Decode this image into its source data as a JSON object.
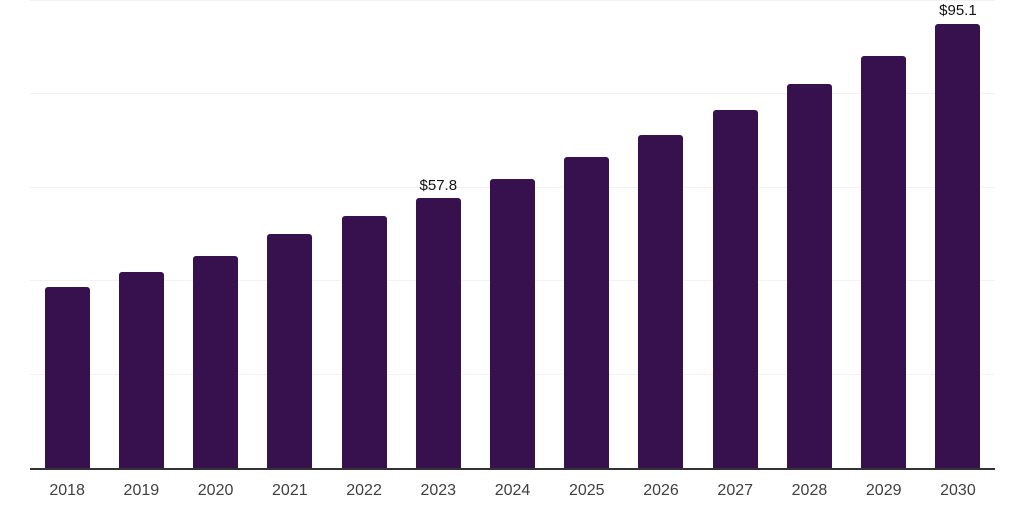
{
  "chart_data": {
    "type": "bar",
    "title": "",
    "xlabel": "",
    "ylabel": "",
    "categories": [
      "2018",
      "2019",
      "2020",
      "2021",
      "2022",
      "2023",
      "2024",
      "2025",
      "2026",
      "2027",
      "2028",
      "2029",
      "2030"
    ],
    "values": [
      38.8,
      41.9,
      45.5,
      50.2,
      53.9,
      57.8,
      61.9,
      66.5,
      71.4,
      76.6,
      82.2,
      88.3,
      95.1
    ],
    "value_labels": {
      "2023": "$57.8",
      "2030": "$95.1"
    },
    "ylim": [
      0,
      100
    ],
    "gridline_step": 20,
    "grid": true,
    "legend": false,
    "bar_corner_radius_px": 3
  },
  "colors": {
    "bar": "#36114E",
    "axis_line": "#333333",
    "gridline": "#f2f2f2",
    "tick_label": "#404040",
    "data_label": "#111111",
    "background": "#ffffff"
  }
}
